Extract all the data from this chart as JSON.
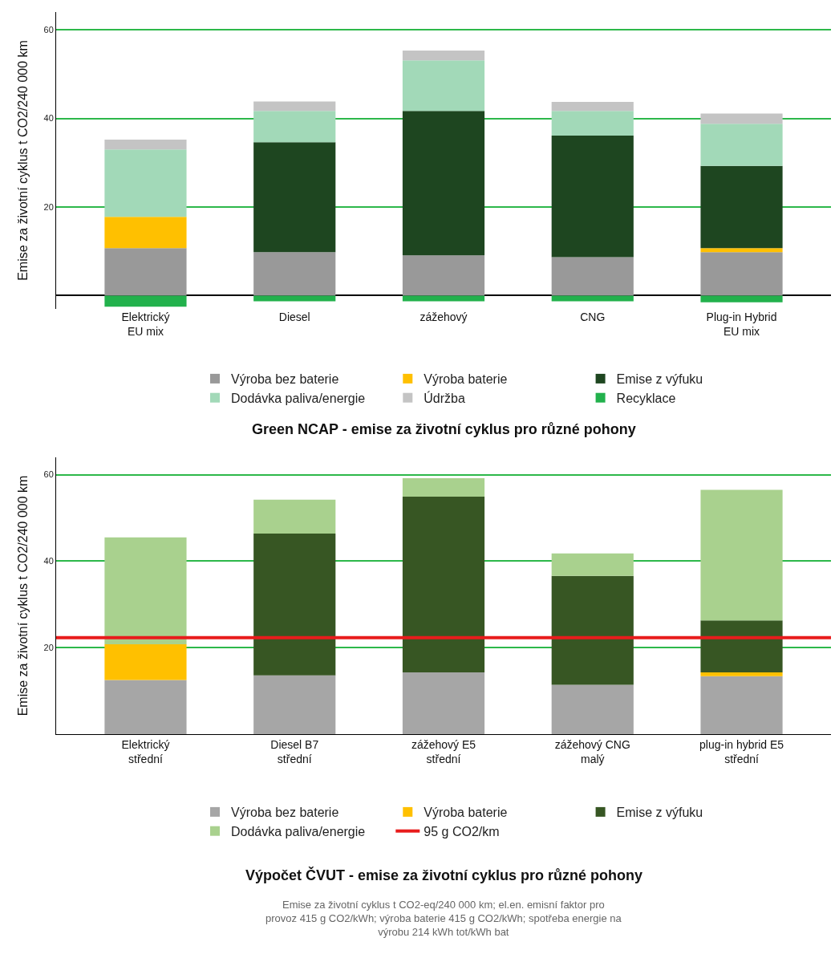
{
  "chart_data": [
    {
      "type": "bar",
      "stacked": true,
      "title": "Green NCAP - emise za životní cyklus pro různé pohony",
      "ylabel": "Emise za životní cyklus t CO2/240 000 km",
      "categories": [
        "Elektrický\nEU mix",
        "Diesel",
        "zážehový",
        "CNG",
        "Plug-in Hybrid\nEU mix"
      ],
      "series": [
        {
          "name": "Výroba bez baterie",
          "color": "#999999",
          "values": [
            10.7,
            9.8,
            9.1,
            8.7,
            9.8
          ]
        },
        {
          "name": "Výroba baterie",
          "color": "#ffc000",
          "values": [
            7.1,
            null,
            null,
            null,
            0.9
          ]
        },
        {
          "name": "Emise z výfuku",
          "color": "#1e4620",
          "values": [
            null,
            24.8,
            32.6,
            27.4,
            18.6
          ]
        },
        {
          "name": "Dodávka paliva/energie",
          "color": "#a2d9b8",
          "values": [
            15.2,
            7.1,
            11.4,
            5.6,
            9.5
          ]
        },
        {
          "name": "Údržba",
          "color": "#c4c4c4",
          "values": [
            2.2,
            2.1,
            2.2,
            2.0,
            2.3
          ]
        },
        {
          "name": "Recyklace",
          "color": "#22b14c",
          "values": [
            -2.5,
            -1.3,
            -1.3,
            -1.3,
            -1.5
          ]
        }
      ],
      "ylim": [
        -3,
        64
      ],
      "yticks": [
        20,
        40,
        60
      ],
      "grid": "y",
      "legend": "bottom"
    },
    {
      "type": "bar",
      "stacked": true,
      "title": "Výpočet ČVUT - emise za životní cyklus pro různé pohony",
      "ylabel": "Emise za životní cyklus t CO2/240 000 km",
      "categories": [
        "Elektrický\nstřední",
        "Diesel B7\nstřední",
        "zážehový E5\nstřední",
        "zážehový CNG\nmalý",
        "plug-in hybrid E5\nstřední"
      ],
      "series": [
        {
          "name": "Výroba bez baterie",
          "color": "#a6a6a6",
          "values": [
            12.5,
            13.6,
            14.3,
            11.4,
            13.4
          ]
        },
        {
          "name": "Výroba baterie",
          "color": "#ffc000",
          "values": [
            8.3,
            null,
            null,
            null,
            0.9
          ]
        },
        {
          "name": "Emise z výfuku",
          "color": "#375623",
          "values": [
            null,
            32.8,
            40.6,
            25.2,
            12.0
          ]
        },
        {
          "name": "Dodávka paliva/energie",
          "color": "#a9d18e",
          "values": [
            24.7,
            7.8,
            4.3,
            5.2,
            30.2
          ]
        }
      ],
      "ref_lines": [
        {
          "axis": "y",
          "value": 22.3,
          "label": "95 g CO2/km",
          "color": "#e81c1c"
        }
      ],
      "annotations": [
        "Emise za životní cyklus t CO2-eq/240 000 km; el.en. emisní faktor pro provoz 415 g CO2/kWh; výroba baterie 415 g CO2/kWh; spotřeba energie na výrobu 214 kWh tot/kWh bat"
      ],
      "ylim": [
        0,
        64
      ],
      "yticks": [
        20,
        40,
        60
      ],
      "grid": "y",
      "legend": "bottom"
    }
  ]
}
